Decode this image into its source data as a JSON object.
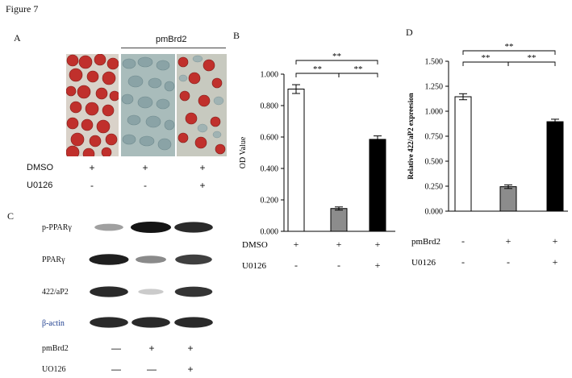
{
  "figure_title": "Figure 7",
  "panel_a": {
    "letter": "A",
    "header": "pmBrd2",
    "rows": [
      {
        "label": "DMSO",
        "signs": [
          "+",
          "+",
          "+"
        ]
      },
      {
        "label": "U0126",
        "signs": [
          "-",
          "-",
          "+"
        ]
      }
    ],
    "colors": {
      "lipid_red": "#c0302c",
      "bluegray": "#9fb4b4"
    }
  },
  "panel_c": {
    "letter": "C",
    "bands": [
      "p-PPARγ",
      "PPARγ",
      "422/aP2",
      "β-actin"
    ],
    "band_intensity": [
      [
        0.35,
        1.0,
        0.9
      ],
      [
        0.95,
        0.45,
        0.8
      ],
      [
        0.9,
        0.15,
        0.85
      ],
      [
        0.9,
        0.9,
        0.9
      ]
    ],
    "rows": [
      {
        "label": "pmBrd2",
        "signs": [
          "—",
          "+",
          "+"
        ]
      },
      {
        "label": "UO126",
        "signs": [
          "—",
          "—",
          "+"
        ]
      }
    ],
    "beta_actin_color": "#1f3f8f"
  },
  "chart_data": [
    {
      "panel": "B",
      "type": "bar",
      "ylabel": "OD Value",
      "ylim": [
        0,
        1.0
      ],
      "yticks": [
        "0.000",
        "0.200",
        "0.400",
        "0.600",
        "0.800",
        "1.000"
      ],
      "values": [
        0.905,
        0.145,
        0.585
      ],
      "errors": [
        0.028,
        0.01,
        0.022
      ],
      "bar_colors": [
        "#ffffff",
        "#8c8c8c",
        "#000000"
      ],
      "significance": [
        "**",
        "**",
        "**"
      ],
      "rows": [
        {
          "label": "DMSO",
          "signs": [
            "+",
            "+",
            "+"
          ]
        },
        {
          "label": "U0126",
          "signs": [
            "-",
            "-",
            "+"
          ]
        }
      ]
    },
    {
      "panel": "D",
      "type": "bar",
      "ylabel": "Relative 422/aP2 expreesion",
      "ylim": [
        0,
        1.5
      ],
      "yticks": [
        "0.000",
        "0.250",
        "0.500",
        "0.750",
        "1.000",
        "1.250",
        "1.500"
      ],
      "values": [
        1.145,
        0.245,
        0.895
      ],
      "errors": [
        0.03,
        0.018,
        0.025
      ],
      "bar_colors": [
        "#ffffff",
        "#8c8c8c",
        "#000000"
      ],
      "significance": [
        "**",
        "**",
        "**"
      ],
      "rows": [
        {
          "label": "pmBrd2",
          "signs": [
            "-",
            "+",
            "+"
          ]
        },
        {
          "label": "U0126",
          "signs": [
            "-",
            "-",
            "+"
          ]
        }
      ]
    }
  ]
}
